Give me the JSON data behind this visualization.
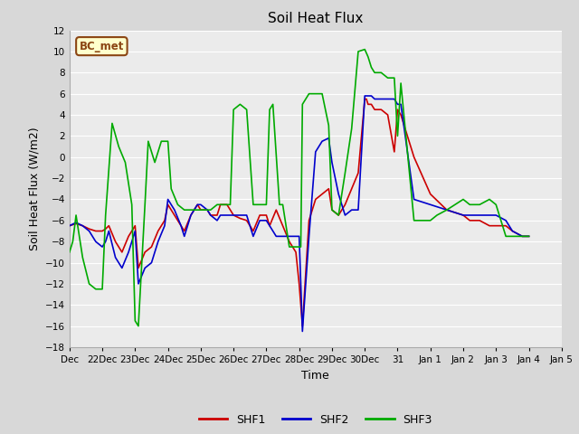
{
  "title": "Soil Heat Flux",
  "xlabel": "Time",
  "ylabel": "Soil Heat Flux (W/m2)",
  "ylim": [
    -18,
    12
  ],
  "yticks": [
    -18,
    -16,
    -14,
    -12,
    -10,
    -8,
    -6,
    -4,
    -2,
    0,
    2,
    4,
    6,
    8,
    10,
    12
  ],
  "bg_color": "#d8d8d8",
  "plot_bg_color": "#ebebeb",
  "grid_color": "#ffffff",
  "annotation_text": "BC_met",
  "annotation_bg": "#ffffcc",
  "annotation_border": "#8b4513",
  "legend_labels": [
    "SHF1",
    "SHF2",
    "SHF3"
  ],
  "legend_colors": [
    "#cc0000",
    "#0000cc",
    "#00aa00"
  ],
  "xtick_positions": [
    21,
    22,
    23,
    24,
    25,
    26,
    27,
    28,
    29,
    30,
    31,
    32,
    33,
    34,
    35,
    36
  ],
  "xtick_labels": [
    "Dec",
    "22Dec",
    "23Dec",
    "24Dec",
    "25Dec",
    "26Dec",
    "27Dec",
    "28Dec",
    "29Dec",
    "30Dec",
    "31",
    "Jan 1",
    "Jan 2",
    "Jan 3",
    "Jan 4",
    "Jan 5"
  ],
  "xlim": [
    21,
    36
  ],
  "shf1_x": [
    21.0,
    21.2,
    21.4,
    21.6,
    21.8,
    22.0,
    22.1,
    22.2,
    22.4,
    22.6,
    22.8,
    23.0,
    23.1,
    23.3,
    23.5,
    23.7,
    23.9,
    24.0,
    24.2,
    24.4,
    24.5,
    24.7,
    24.9,
    25.0,
    25.2,
    25.3,
    25.5,
    25.6,
    25.8,
    26.0,
    26.2,
    26.4,
    26.6,
    26.8,
    27.0,
    27.1,
    27.3,
    27.5,
    27.7,
    27.9,
    28.0,
    28.05,
    28.1,
    28.3,
    28.5,
    28.7,
    28.9,
    29.0,
    29.2,
    29.4,
    29.6,
    29.8,
    30.0,
    30.05,
    30.1,
    30.2,
    30.3,
    30.5,
    30.7,
    30.9,
    31.0,
    31.1,
    31.5,
    32.0,
    32.5,
    33.0,
    33.2,
    33.5,
    33.8,
    34.0,
    34.3,
    34.5,
    34.8,
    35.0
  ],
  "shf1_y": [
    -6.5,
    -6.3,
    -6.5,
    -6.8,
    -7.0,
    -7.0,
    -6.8,
    -6.5,
    -8.0,
    -9.0,
    -7.5,
    -6.5,
    -10.5,
    -9.0,
    -8.5,
    -7.0,
    -6.0,
    -4.5,
    -5.5,
    -6.5,
    -7.0,
    -5.5,
    -4.5,
    -5.0,
    -5.0,
    -5.5,
    -5.5,
    -4.5,
    -4.5,
    -5.5,
    -5.8,
    -6.0,
    -7.0,
    -5.5,
    -5.5,
    -6.5,
    -5.0,
    -6.5,
    -8.0,
    -9.0,
    -12.0,
    -14.0,
    -16.0,
    -6.0,
    -4.0,
    -3.5,
    -3.0,
    -5.0,
    -5.5,
    -4.5,
    -3.0,
    -1.5,
    5.5,
    5.5,
    5.0,
    5.0,
    4.5,
    4.5,
    4.0,
    0.5,
    4.5,
    4.0,
    0.0,
    -3.5,
    -5.0,
    -5.5,
    -6.0,
    -6.0,
    -6.5,
    -6.5,
    -6.5,
    -7.0,
    -7.5,
    -7.5
  ],
  "shf2_x": [
    21.0,
    21.2,
    21.4,
    21.6,
    21.8,
    22.0,
    22.1,
    22.2,
    22.4,
    22.6,
    22.8,
    23.0,
    23.1,
    23.3,
    23.5,
    23.7,
    23.9,
    24.0,
    24.2,
    24.4,
    24.5,
    24.7,
    24.9,
    25.0,
    25.2,
    25.3,
    25.5,
    25.6,
    25.8,
    26.0,
    26.2,
    26.4,
    26.6,
    26.8,
    27.0,
    27.1,
    27.3,
    27.5,
    27.7,
    27.9,
    28.0,
    28.05,
    28.1,
    28.3,
    28.5,
    28.7,
    28.9,
    29.0,
    29.2,
    29.4,
    29.6,
    29.8,
    30.0,
    30.05,
    30.1,
    30.2,
    30.3,
    30.5,
    30.7,
    30.9,
    31.0,
    31.1,
    31.5,
    32.0,
    32.5,
    33.0,
    33.2,
    33.5,
    33.8,
    34.0,
    34.3,
    34.5,
    34.8,
    35.0
  ],
  "shf2_y": [
    -6.5,
    -6.2,
    -6.5,
    -7.0,
    -8.0,
    -8.5,
    -8.0,
    -7.0,
    -9.5,
    -10.5,
    -9.0,
    -7.0,
    -12.0,
    -10.5,
    -10.0,
    -8.0,
    -6.5,
    -4.0,
    -5.0,
    -6.5,
    -7.5,
    -5.5,
    -4.5,
    -4.5,
    -5.0,
    -5.5,
    -6.0,
    -5.5,
    -5.5,
    -5.5,
    -5.5,
    -5.5,
    -7.5,
    -6.0,
    -6.0,
    -6.5,
    -7.5,
    -7.5,
    -7.5,
    -7.5,
    -7.5,
    -12.0,
    -16.5,
    -7.5,
    0.5,
    1.5,
    1.8,
    -0.5,
    -3.5,
    -5.5,
    -5.0,
    -5.0,
    5.8,
    5.8,
    5.8,
    5.8,
    5.5,
    5.5,
    5.5,
    5.5,
    5.0,
    5.0,
    -4.0,
    -4.5,
    -5.0,
    -5.5,
    -5.5,
    -5.5,
    -5.5,
    -5.5,
    -6.0,
    -7.0,
    -7.5,
    -7.5
  ],
  "shf3_x": [
    21.0,
    21.1,
    21.2,
    21.4,
    21.6,
    21.8,
    22.0,
    22.1,
    22.3,
    22.5,
    22.7,
    22.9,
    23.0,
    23.1,
    23.3,
    23.4,
    23.6,
    23.8,
    24.0,
    24.1,
    24.3,
    24.5,
    24.7,
    25.0,
    25.1,
    25.3,
    25.5,
    25.7,
    25.9,
    26.0,
    26.2,
    26.4,
    26.6,
    26.8,
    27.0,
    27.1,
    27.2,
    27.4,
    27.5,
    27.7,
    27.9,
    28.0,
    28.05,
    28.1,
    28.3,
    28.5,
    28.7,
    28.9,
    29.0,
    29.2,
    29.4,
    29.6,
    29.8,
    30.0,
    30.1,
    30.2,
    30.3,
    30.5,
    30.7,
    30.9,
    31.0,
    31.1,
    31.5,
    32.0,
    32.2,
    32.5,
    33.0,
    33.2,
    33.5,
    33.8,
    34.0,
    34.3,
    34.5,
    34.8,
    35.0
  ],
  "shf3_y": [
    -9.0,
    -8.0,
    -5.5,
    -9.5,
    -12.0,
    -12.5,
    -12.5,
    -5.5,
    3.2,
    1.0,
    -0.5,
    -4.5,
    -15.5,
    -16.0,
    -4.5,
    1.5,
    -0.5,
    1.5,
    1.5,
    -3.0,
    -4.5,
    -5.0,
    -5.0,
    -5.0,
    -5.0,
    -5.0,
    -4.5,
    -4.5,
    -4.5,
    4.5,
    5.0,
    4.5,
    -4.5,
    -4.5,
    -4.5,
    4.5,
    5.0,
    -4.5,
    -4.5,
    -8.5,
    -8.5,
    -8.5,
    -8.5,
    5.0,
    6.0,
    6.0,
    6.0,
    3.0,
    -5.0,
    -5.5,
    -1.5,
    2.7,
    10.0,
    10.2,
    9.5,
    8.5,
    8.0,
    8.0,
    7.5,
    7.5,
    2.0,
    7.0,
    -6.0,
    -6.0,
    -5.5,
    -5.0,
    -4.0,
    -4.5,
    -4.5,
    -4.0,
    -4.5,
    -7.5,
    -7.5,
    -7.5,
    -7.5
  ]
}
